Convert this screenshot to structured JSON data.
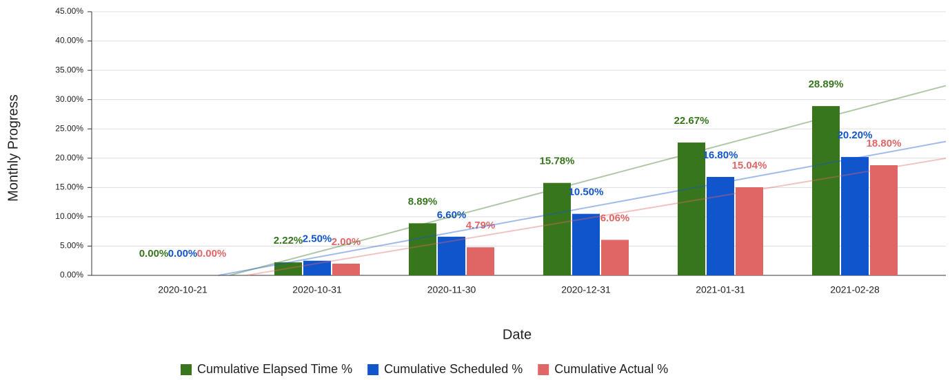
{
  "chart_data": {
    "type": "bar",
    "x_label": "Date",
    "y_label": "Monthly Progress",
    "categories": [
      "2020-10-21",
      "2020-10-31",
      "2020-11-30",
      "2020-12-31",
      "2021-01-31",
      "2021-02-28"
    ],
    "series": [
      {
        "name": "Cumulative Elapsed Time %",
        "color": "#38761d",
        "values": [
          0,
          2.22,
          8.89,
          15.78,
          22.67,
          28.89
        ],
        "value_labels": [
          "0.00%",
          "2.22%",
          "8.89%",
          "15.78%",
          "22.67%",
          "28.89%"
        ]
      },
      {
        "name": "Cumulative Scheduled %",
        "color": "#1155cc",
        "values": [
          0,
          2.5,
          6.6,
          10.5,
          16.8,
          20.2
        ],
        "value_labels": [
          "0.00%",
          "2.50%",
          "6.60%",
          "10.50%",
          "16.80%",
          "20.20%"
        ]
      },
      {
        "name": "Cumulative Actual %",
        "color": "#e06666",
        "values": [
          0,
          2,
          4.79,
          6.06,
          15.04,
          18.8
        ],
        "value_labels": [
          "0.00%",
          "2.00%",
          "4.79%",
          "6.06%",
          "15.04%",
          "18.80%"
        ]
      }
    ],
    "ylim": [
      0,
      45
    ],
    "yticks": [
      {
        "value": 0,
        "label": "0.00%"
      },
      {
        "value": 5,
        "label": "5.00%"
      },
      {
        "value": 10,
        "label": "10.00%"
      },
      {
        "value": 15,
        "label": "15.00%"
      },
      {
        "value": 20,
        "label": "20.00%"
      },
      {
        "value": 25,
        "label": "25.00%"
      },
      {
        "value": 30,
        "label": "30.00%"
      },
      {
        "value": 35,
        "label": "35.00%"
      },
      {
        "value": 40,
        "label": "40.00%"
      },
      {
        "value": 45,
        "label": "45.00%"
      }
    ],
    "grid": true,
    "trendline": true,
    "legend": "bottom"
  }
}
